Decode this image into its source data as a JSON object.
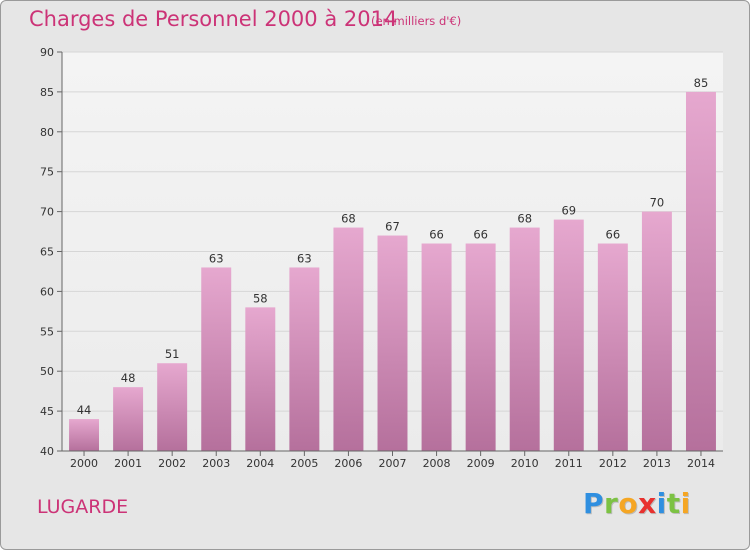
{
  "header": {
    "title": "Charges de Personnel 2000 à 2014",
    "subtitle": "(en milliers d'€)"
  },
  "footer": {
    "commune": "LUGARDE",
    "logo_letters": [
      {
        "ch": "P",
        "color": "#2f8fe0"
      },
      {
        "ch": "r",
        "color": "#7cc243"
      },
      {
        "ch": "o",
        "color": "#f5a623"
      },
      {
        "ch": "x",
        "color": "#e8312f"
      },
      {
        "ch": "i",
        "color": "#2f8fe0"
      },
      {
        "ch": "t",
        "color": "#7cc243"
      },
      {
        "ch": "i",
        "color": "#f5a623"
      }
    ]
  },
  "chart_data": {
    "type": "bar",
    "title": "Charges de Personnel 2000 à 2014",
    "subtitle": "(en milliers d'€)",
    "categories": [
      "2000",
      "2001",
      "2002",
      "2003",
      "2004",
      "2005",
      "2006",
      "2007",
      "2008",
      "2009",
      "2010",
      "2011",
      "2012",
      "2013",
      "2014"
    ],
    "values": [
      44,
      48,
      51,
      63,
      58,
      63,
      68,
      67,
      66,
      66,
      68,
      69,
      66,
      70,
      85
    ],
    "ylim": [
      40,
      90
    ],
    "yticks": [
      40,
      45,
      50,
      55,
      60,
      65,
      70,
      75,
      80,
      85,
      90
    ],
    "grid": true,
    "bar_color_top": "#e6a8cf",
    "bar_color_bottom": "#b5709c"
  }
}
